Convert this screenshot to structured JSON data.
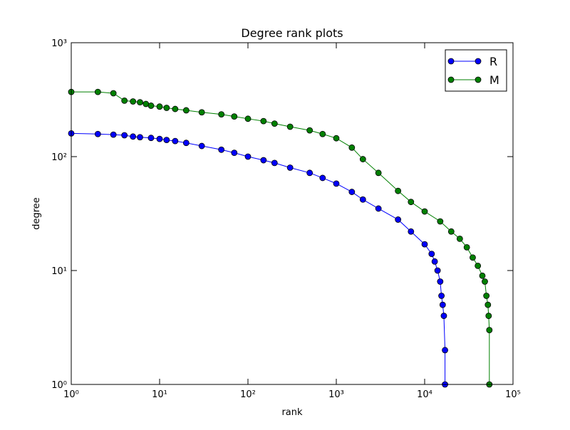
{
  "chart_data": {
    "type": "line",
    "title": "Degree rank plots",
    "x_label": "rank",
    "y_label": "degree",
    "xscale": "log",
    "yscale": "log",
    "legend": "upper right",
    "xlim": [
      1,
      100000
    ],
    "ylim": [
      1,
      1000
    ],
    "xticks": [
      {
        "value": 1,
        "label": "10⁰"
      },
      {
        "value": 10,
        "label": "10¹"
      },
      {
        "value": 100,
        "label": "10²"
      },
      {
        "value": 1000,
        "label": "10³"
      },
      {
        "value": 10000,
        "label": "10⁴"
      },
      {
        "value": 100000,
        "label": "10⁵"
      }
    ],
    "yticks": [
      {
        "value": 1,
        "label": "10⁰"
      },
      {
        "value": 10,
        "label": "10¹"
      },
      {
        "value": 100,
        "label": "10²"
      },
      {
        "value": 1000,
        "label": "10³"
      }
    ],
    "series": [
      {
        "name": "R",
        "color": "#0000ff",
        "x": [
          1,
          2,
          3,
          4,
          5,
          6,
          8,
          10,
          12,
          15,
          20,
          30,
          50,
          70,
          100,
          150,
          200,
          300,
          500,
          700,
          1000,
          1500,
          2000,
          3000,
          5000,
          7000,
          10000,
          12000,
          13000,
          14000,
          15000,
          15500,
          16000,
          16500,
          17000,
          17000
        ],
        "values": [
          160,
          158,
          156,
          154,
          150,
          148,
          146,
          143,
          140,
          137,
          132,
          124,
          115,
          108,
          100,
          93,
          88,
          80,
          72,
          65,
          58,
          49,
          42,
          35,
          28,
          22,
          17,
          14,
          12,
          10,
          8,
          6,
          5,
          4,
          2,
          1
        ]
      },
      {
        "name": "M",
        "color": "#008000",
        "x": [
          1,
          2,
          3,
          4,
          5,
          6,
          7,
          8,
          10,
          12,
          15,
          20,
          30,
          50,
          70,
          100,
          150,
          200,
          300,
          500,
          700,
          1000,
          1500,
          2000,
          3000,
          5000,
          7000,
          10000,
          15000,
          20000,
          25000,
          30000,
          35000,
          40000,
          45000,
          48000,
          50000,
          52000,
          53000,
          54000,
          54000
        ],
        "values": [
          370,
          370,
          360,
          310,
          305,
          300,
          290,
          280,
          275,
          268,
          262,
          255,
          245,
          235,
          225,
          215,
          205,
          195,
          183,
          170,
          158,
          145,
          120,
          95,
          72,
          50,
          40,
          33,
          27,
          22,
          19,
          16,
          13,
          11,
          9,
          8,
          6,
          5,
          4,
          3,
          1
        ]
      }
    ]
  }
}
